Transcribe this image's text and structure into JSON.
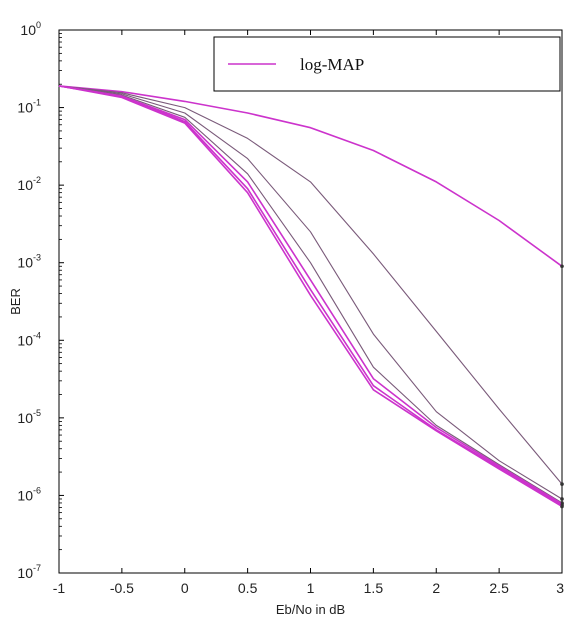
{
  "chart_data": {
    "type": "line",
    "xlabel": "Eb/No in dB",
    "ylabel": "BER",
    "xlim": [
      -1,
      3
    ],
    "ylim": [
      1e-07,
      1
    ],
    "yscale": "log",
    "grid": false,
    "legend": {
      "placement": "top-right",
      "entries": [
        {
          "label": "log-MAP",
          "color": "#cc33cc"
        }
      ]
    },
    "x_ticks": [
      "-1",
      "-0.5",
      "0",
      "0.5",
      "1",
      "1.5",
      "2",
      "2.5",
      "3"
    ],
    "y_ticks": [
      {
        "base": "10",
        "exp": "0"
      },
      {
        "base": "10",
        "exp": "-1"
      },
      {
        "base": "10",
        "exp": "-2"
      },
      {
        "base": "10",
        "exp": "-3"
      },
      {
        "base": "10",
        "exp": "-4"
      },
      {
        "base": "10",
        "exp": "-5"
      },
      {
        "base": "10",
        "exp": "-6"
      },
      {
        "base": "10",
        "exp": "-7"
      }
    ],
    "x": [
      -1,
      -0.5,
      0,
      0.5,
      1,
      1.5,
      2,
      2.5,
      3
    ],
    "series": [
      {
        "color": "#cc33cc",
        "values": [
          0.19,
          0.16,
          0.12,
          0.085,
          0.055,
          0.028,
          0.011,
          0.0035,
          0.0009
        ]
      },
      {
        "color": "#7a5a7a",
        "values": [
          0.19,
          0.155,
          0.1,
          0.04,
          0.011,
          0.0013,
          0.00013,
          1.3e-05,
          1.4e-06
        ]
      },
      {
        "color": "#7a5a7a",
        "values": [
          0.19,
          0.15,
          0.085,
          0.022,
          0.0025,
          0.00012,
          1.2e-05,
          2.8e-06,
          9e-07
        ]
      },
      {
        "color": "#7a5a7a",
        "values": [
          0.19,
          0.145,
          0.075,
          0.014,
          0.001,
          4.5e-05,
          8e-06,
          2.5e-06,
          8e-07
        ]
      },
      {
        "color": "#cc33cc",
        "values": [
          0.19,
          0.14,
          0.07,
          0.011,
          0.0006,
          3.2e-05,
          7.5e-06,
          2.4e-06,
          7.8e-07
        ]
      },
      {
        "color": "#cc33cc",
        "values": [
          0.19,
          0.14,
          0.066,
          0.009,
          0.00045,
          2.6e-05,
          7e-06,
          2.3e-06,
          7.5e-07
        ]
      },
      {
        "color": "#cc33cc",
        "values": [
          0.19,
          0.135,
          0.063,
          0.008,
          0.00038,
          2.3e-05,
          6.8e-06,
          2.2e-06,
          7.2e-07
        ]
      }
    ]
  }
}
